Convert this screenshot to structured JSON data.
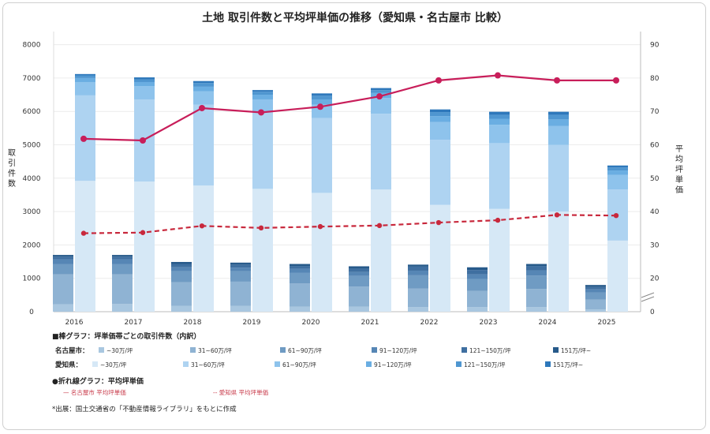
{
  "chart_data": {
    "type": "bar",
    "title": "土地 取引件数と平均坪単価の推移（愛知県・名古屋市 比較）",
    "ylabel_left": "取引件数",
    "ylabel_right": "平均坪単価",
    "categories": [
      "2016",
      "2017",
      "2018",
      "2019",
      "2020",
      "2021",
      "2022",
      "2023",
      "2024",
      "2025"
    ],
    "y_left": {
      "ticks": [
        "0",
        "1000",
        "2000",
        "3000",
        "4000",
        "5000",
        "6000",
        "7000",
        "8000"
      ],
      "range": [
        0,
        8400
      ]
    },
    "y_right": {
      "ticks": [
        "20",
        "30",
        "40",
        "50",
        "60",
        "70",
        "80",
        "90"
      ],
      "range": [
        20,
        90
      ],
      "broken_at_zero": "0"
    },
    "bar_series": {
      "nagoya": {
        "label": "名古屋市：",
        "colors": [
          "#a9c7e0",
          "#8fb3d3",
          "#6f9bc3",
          "#5686b5",
          "#3f6fa0",
          "#275a8a"
        ],
        "stack_totals": [
          [
            220,
            1120,
            1430,
            1570,
            1650,
            1700
          ],
          [
            230,
            1120,
            1430,
            1570,
            1650,
            1700
          ],
          [
            170,
            880,
            1210,
            1330,
            1430,
            1490
          ],
          [
            170,
            900,
            1210,
            1320,
            1410,
            1470
          ],
          [
            150,
            850,
            1170,
            1290,
            1370,
            1430
          ],
          [
            150,
            750,
            1070,
            1190,
            1300,
            1360
          ],
          [
            140,
            690,
            1090,
            1230,
            1350,
            1410
          ],
          [
            140,
            620,
            980,
            1120,
            1250,
            1330
          ],
          [
            140,
            680,
            1080,
            1240,
            1370,
            1430
          ],
          [
            70,
            360,
            580,
            670,
            740,
            800
          ]
        ]
      },
      "aichi": {
        "label": "愛知県：",
        "colors": [
          "#d6e8f6",
          "#aed3f1",
          "#8ec3ec",
          "#6aaee2",
          "#4f96d0",
          "#2e78bb"
        ],
        "stack_totals": [
          [
            3920,
            6480,
            6880,
            7000,
            7080,
            7120
          ],
          [
            3900,
            6360,
            6760,
            6880,
            6960,
            7020
          ],
          [
            3780,
            6200,
            6600,
            6740,
            6850,
            6910
          ],
          [
            3680,
            6000,
            6360,
            6500,
            6590,
            6640
          ],
          [
            3560,
            5800,
            6200,
            6360,
            6470,
            6540
          ],
          [
            3660,
            5930,
            6400,
            6560,
            6640,
            6700
          ],
          [
            3200,
            5150,
            5680,
            5860,
            5980,
            6060
          ],
          [
            3080,
            5050,
            5600,
            5780,
            5900,
            5990
          ],
          [
            3000,
            5000,
            5560,
            5760,
            5900,
            5990
          ],
          [
            2130,
            3660,
            4100,
            4230,
            4320,
            4380
          ]
        ]
      }
    },
    "line_series": [
      {
        "name": "名古屋市 平均坪単価",
        "style": "solid",
        "color": "#c81e5a",
        "values": [
          61.8,
          61.3,
          71.0,
          69.7,
          71.4,
          74.5,
          79.3,
          80.8,
          79.3,
          79.3
        ]
      },
      {
        "name": "愛知県 平均坪単価",
        "style": "dashed",
        "color": "#c8283c",
        "values": [
          33.5,
          33.7,
          35.7,
          35.1,
          35.5,
          35.8,
          36.7,
          37.4,
          39.0,
          38.8
        ]
      }
    ]
  },
  "legend": {
    "bar_heading": "■棒グラフ：坪単価帯ごとの取引件数（内訳）",
    "nagoya_label": "名古屋市：",
    "aichi_label": "愛知県：",
    "bands": [
      "~30万/坪",
      "31~60万/坪",
      "61~90万/坪",
      "91~120万/坪",
      "121~150万/坪",
      "151万/坪~"
    ],
    "line_heading": "●折れ線グラフ：平均坪単価",
    "line_nagoya": "— 名古屋市 平均坪単価",
    "line_aichi": "-- 愛知県 平均坪単価"
  },
  "source": "*出展：国土交通省の「不動産情報ライブラリ」をもとに作成"
}
